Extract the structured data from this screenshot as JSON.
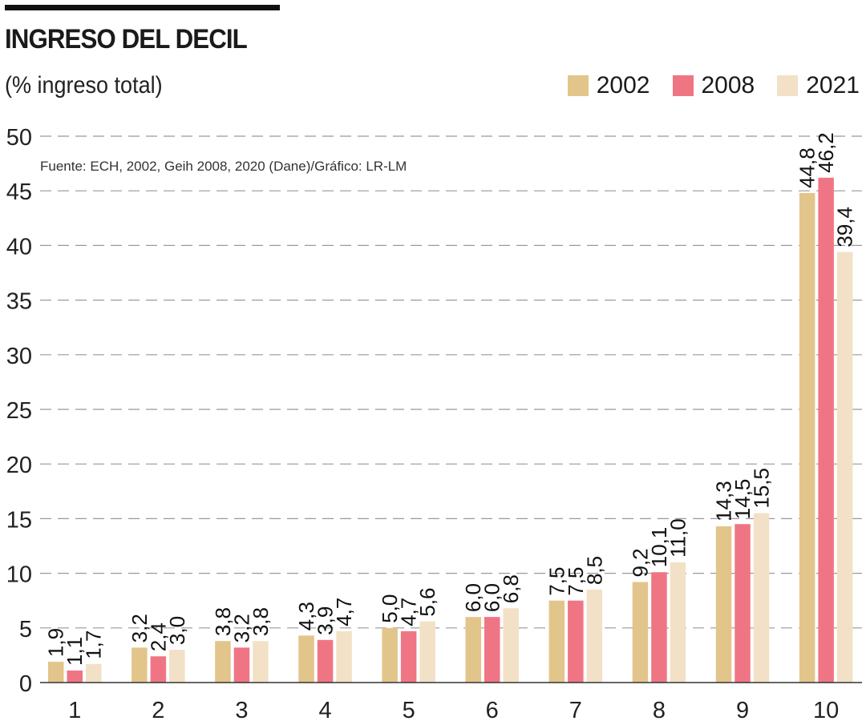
{
  "title": "INGRESO DEL DECIL",
  "subtitle": "(% ingreso total)",
  "chart_data": {
    "type": "bar",
    "title": "INGRESO DEL DECIL",
    "ylabel": "(% ingreso total)",
    "xlabel": "",
    "source": "Fuente: ECH, 2002, Geih 2008, 2020 (Dane)/Gráfico: LR-LM",
    "categories": [
      "1",
      "2",
      "3",
      "4",
      "5",
      "6",
      "7",
      "8",
      "9",
      "10"
    ],
    "ylim": [
      0,
      50
    ],
    "yticks": [
      0,
      5,
      10,
      15,
      20,
      25,
      30,
      35,
      40,
      45,
      50
    ],
    "grid": true,
    "legend_position": "top-right",
    "series": [
      {
        "name": "2002",
        "color": "#e2c58a",
        "values": [
          1.9,
          3.2,
          3.8,
          4.3,
          5.0,
          6.0,
          7.5,
          9.2,
          14.3,
          44.8
        ],
        "labels": [
          "1,9",
          "3,2",
          "3,8",
          "4,3",
          "5,0",
          "6,0",
          "7,5",
          "9,2",
          "14,3",
          "44,8"
        ]
      },
      {
        "name": "2008",
        "color": "#f07584",
        "values": [
          1.1,
          2.4,
          3.2,
          3.9,
          4.7,
          6.0,
          7.5,
          10.1,
          14.5,
          46.2
        ],
        "labels": [
          "1,1",
          "2,4",
          "3,2",
          "3,9",
          "4,7",
          "6,0",
          "7,5",
          "10,1",
          "14,5",
          "46,2"
        ]
      },
      {
        "name": "2021",
        "color": "#f2e1c6",
        "values": [
          1.7,
          3.0,
          3.8,
          4.7,
          5.6,
          6.8,
          8.5,
          11.0,
          15.5,
          39.4
        ],
        "labels": [
          "1,7",
          "3,0",
          "3,8",
          "4,7",
          "5,6",
          "6,8",
          "8,5",
          "11,0",
          "15,5",
          "39,4"
        ]
      }
    ]
  }
}
